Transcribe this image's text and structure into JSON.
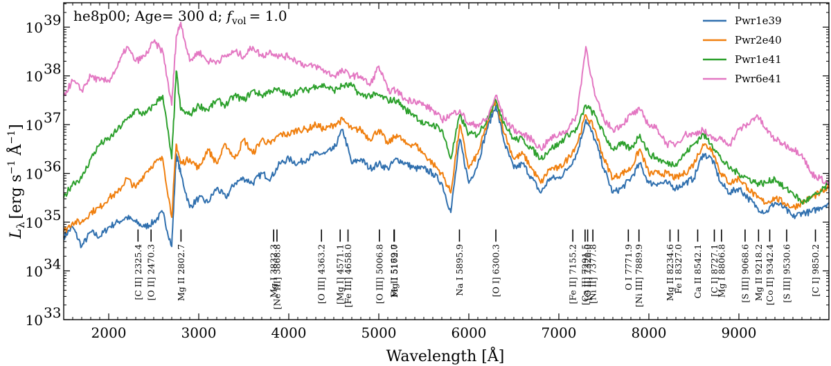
{
  "chart_data": {
    "type": "line",
    "title": "he8p00; Age= 300 d; f_vol = 1.0",
    "title_parts": {
      "model": "he8p00; Age",
      "age": "= 300 d;",
      "fvol_sym": "f",
      "fvol_sub": "vol",
      "fvol_val": "= 1.0"
    },
    "xlabel": "Wavelength [Å]",
    "ylabel": "L_λ [erg s^-1 Å^-1]",
    "ylabel_parts": {
      "sym": "L",
      "sub": "λ",
      "unit_a": "[erg s",
      "exp_a": "−1",
      "unit_b": " Å",
      "exp_b": "−1",
      "close": "]"
    },
    "xlim": [
      1500,
      10000
    ],
    "ylim_log10": [
      33,
      39.5
    ],
    "y_scale": "log",
    "x_ticks": [
      2000,
      3000,
      4000,
      5000,
      6000,
      7000,
      8000,
      9000
    ],
    "y_ticks": [
      {
        "exp": 33,
        "base": "10",
        "sup": "33"
      },
      {
        "exp": 34,
        "base": "10",
        "sup": "34"
      },
      {
        "exp": 35,
        "base": "10",
        "sup": "35"
      },
      {
        "exp": 36,
        "base": "10",
        "sup": "36"
      },
      {
        "exp": 37,
        "base": "10",
        "sup": "37"
      },
      {
        "exp": 38,
        "base": "10",
        "sup": "38"
      },
      {
        "exp": 39,
        "base": "10",
        "sup": "39"
      }
    ],
    "legend_position": "top-right",
    "series": [
      {
        "name": "Pwr1e39",
        "color": "#2f6fae",
        "x": [
          1500,
          1600,
          1700,
          1800,
          1900,
          2000,
          2100,
          2200,
          2300,
          2400,
          2500,
          2600,
          2700,
          2750,
          2800,
          2900,
          3000,
          3100,
          3200,
          3300,
          3400,
          3500,
          3600,
          3700,
          3800,
          3900,
          4000,
          4100,
          4200,
          4300,
          4400,
          4500,
          4600,
          4700,
          4800,
          4900,
          5000,
          5100,
          5200,
          5300,
          5400,
          5500,
          5600,
          5700,
          5800,
          5900,
          6000,
          6100,
          6200,
          6300,
          6400,
          6500,
          6600,
          6700,
          6800,
          6900,
          7000,
          7100,
          7200,
          7300,
          7400,
          7500,
          7600,
          7700,
          7800,
          7900,
          8000,
          8100,
          8200,
          8300,
          8400,
          8500,
          8600,
          8700,
          8800,
          8900,
          9000,
          9100,
          9200,
          9300,
          9400,
          9500,
          9600,
          9700,
          9800,
          9900,
          10000
        ],
        "log_y": [
          34.7,
          34.9,
          34.5,
          34.8,
          34.7,
          34.9,
          35.0,
          35.1,
          35.0,
          34.9,
          35.0,
          35.2,
          34.5,
          36.4,
          36.0,
          35.3,
          35.5,
          35.4,
          35.7,
          35.5,
          35.8,
          35.9,
          35.8,
          36.0,
          35.9,
          36.2,
          36.3,
          36.2,
          36.3,
          36.4,
          36.4,
          36.5,
          36.9,
          36.2,
          36.3,
          36.1,
          36.2,
          36.1,
          36.3,
          36.2,
          36.1,
          36.1,
          36.0,
          35.8,
          35.2,
          36.7,
          35.8,
          36.2,
          36.9,
          37.4,
          36.6,
          36.1,
          36.2,
          35.9,
          35.6,
          35.9,
          35.9,
          36.1,
          36.4,
          37.1,
          36.7,
          36.1,
          35.6,
          35.7,
          35.9,
          36.2,
          35.8,
          35.8,
          35.8,
          35.7,
          35.8,
          35.9,
          36.4,
          36.3,
          35.8,
          35.6,
          35.7,
          35.5,
          35.3,
          35.2,
          35.4,
          35.3,
          35.1,
          35.2,
          35.2,
          35.3,
          35.4
        ]
      },
      {
        "name": "Pwr2e40",
        "color": "#f07f0e",
        "x": [
          1500,
          1600,
          1700,
          1800,
          1900,
          2000,
          2100,
          2200,
          2300,
          2400,
          2500,
          2600,
          2700,
          2750,
          2800,
          2900,
          3000,
          3100,
          3200,
          3300,
          3400,
          3500,
          3600,
          3700,
          3800,
          3900,
          4000,
          4100,
          4200,
          4300,
          4400,
          4500,
          4600,
          4700,
          4800,
          4900,
          5000,
          5100,
          5200,
          5300,
          5400,
          5500,
          5600,
          5700,
          5800,
          5900,
          6000,
          6100,
          6200,
          6300,
          6400,
          6500,
          6600,
          6700,
          6800,
          6900,
          7000,
          7100,
          7200,
          7300,
          7400,
          7500,
          7600,
          7700,
          7800,
          7900,
          8000,
          8100,
          8200,
          8300,
          8400,
          8500,
          8600,
          8700,
          8800,
          8900,
          9000,
          9100,
          9200,
          9300,
          9400,
          9500,
          9600,
          9700,
          9800,
          9900,
          10000
        ],
        "log_y": [
          34.8,
          35.0,
          35.0,
          35.2,
          35.3,
          35.5,
          35.6,
          35.9,
          35.7,
          36.0,
          36.2,
          36.3,
          35.1,
          36.6,
          36.2,
          36.3,
          36.1,
          36.5,
          36.2,
          36.6,
          36.3,
          36.7,
          36.4,
          36.7,
          36.6,
          36.8,
          36.8,
          36.9,
          36.9,
          37.0,
          36.9,
          37.0,
          37.1,
          36.9,
          36.9,
          36.7,
          36.9,
          36.6,
          36.8,
          36.6,
          36.6,
          36.4,
          36.2,
          36.0,
          35.6,
          37.0,
          36.1,
          36.4,
          37.0,
          37.5,
          36.8,
          36.3,
          36.4,
          36.1,
          35.8,
          36.1,
          36.1,
          36.3,
          36.6,
          37.2,
          36.9,
          36.3,
          35.9,
          36.0,
          36.1,
          36.5,
          36.0,
          36.0,
          36.0,
          35.9,
          36.0,
          36.2,
          36.6,
          36.5,
          36.0,
          35.8,
          35.9,
          35.7,
          35.5,
          35.4,
          35.5,
          35.4,
          35.3,
          35.4,
          35.5,
          35.6,
          35.7
        ]
      },
      {
        "name": "Pwr1e41",
        "color": "#2ca02c",
        "x": [
          1500,
          1600,
          1700,
          1800,
          1900,
          2000,
          2100,
          2200,
          2300,
          2400,
          2500,
          2600,
          2700,
          2750,
          2800,
          2900,
          3000,
          3100,
          3200,
          3300,
          3400,
          3500,
          3600,
          3700,
          3800,
          3900,
          4000,
          4100,
          4200,
          4300,
          4400,
          4500,
          4600,
          4700,
          4800,
          4900,
          5000,
          5100,
          5200,
          5300,
          5400,
          5500,
          5600,
          5700,
          5800,
          5900,
          6000,
          6100,
          6200,
          6300,
          6400,
          6500,
          6600,
          6700,
          6800,
          6900,
          7000,
          7100,
          7200,
          7300,
          7400,
          7500,
          7600,
          7700,
          7800,
          7900,
          8000,
          8100,
          8200,
          8300,
          8400,
          8500,
          8600,
          8700,
          8800,
          8900,
          9000,
          9100,
          9200,
          9300,
          9400,
          9500,
          9600,
          9700,
          9800,
          9900,
          10000
        ],
        "log_y": [
          35.5,
          35.8,
          35.9,
          36.3,
          36.6,
          36.7,
          36.9,
          37.1,
          37.3,
          37.2,
          37.4,
          37.6,
          36.3,
          38.1,
          37.3,
          37.2,
          37.4,
          37.3,
          37.5,
          37.4,
          37.6,
          37.5,
          37.7,
          37.6,
          37.7,
          37.7,
          37.6,
          37.7,
          37.7,
          37.8,
          37.8,
          37.7,
          37.8,
          37.8,
          37.6,
          37.6,
          37.6,
          37.5,
          37.5,
          37.3,
          37.2,
          37.0,
          37.0,
          36.9,
          36.3,
          37.2,
          36.8,
          36.8,
          37.1,
          37.5,
          37.0,
          36.7,
          36.7,
          36.5,
          36.3,
          36.5,
          36.6,
          36.8,
          36.9,
          37.4,
          37.2,
          36.8,
          36.5,
          36.6,
          36.5,
          36.8,
          36.4,
          36.3,
          36.2,
          36.2,
          36.4,
          36.6,
          36.8,
          36.6,
          36.3,
          36.1,
          36.0,
          35.9,
          35.8,
          35.8,
          35.9,
          35.7,
          35.6,
          35.4,
          35.5,
          35.6,
          35.8
        ]
      },
      {
        "name": "Pwr6e41",
        "color": "#e377c2",
        "x": [
          1500,
          1600,
          1700,
          1800,
          1900,
          2000,
          2100,
          2200,
          2300,
          2400,
          2500,
          2600,
          2700,
          2750,
          2800,
          2900,
          3000,
          3100,
          3200,
          3300,
          3400,
          3500,
          3600,
          3700,
          3800,
          3900,
          4000,
          4100,
          4200,
          4300,
          4400,
          4500,
          4600,
          4700,
          4800,
          4900,
          5000,
          5100,
          5200,
          5300,
          5400,
          5500,
          5600,
          5700,
          5800,
          5900,
          6000,
          6100,
          6200,
          6300,
          6400,
          6500,
          6600,
          6700,
          6800,
          6900,
          7000,
          7100,
          7200,
          7300,
          7400,
          7500,
          7600,
          7700,
          7800,
          7900,
          8000,
          8100,
          8200,
          8300,
          8400,
          8500,
          8600,
          8700,
          8800,
          8900,
          9000,
          9100,
          9200,
          9300,
          9400,
          9500,
          9600,
          9700,
          9800,
          9900,
          10000
        ],
        "log_y": [
          37.6,
          37.9,
          37.7,
          38.0,
          37.9,
          37.9,
          38.2,
          38.6,
          38.3,
          38.4,
          38.7,
          38.5,
          37.4,
          38.8,
          39.1,
          38.3,
          38.5,
          38.3,
          38.3,
          38.4,
          38.5,
          38.4,
          38.6,
          38.4,
          38.5,
          38.4,
          38.4,
          38.3,
          38.2,
          38.2,
          38.1,
          38.0,
          38.1,
          38.0,
          38.0,
          37.8,
          38.2,
          37.7,
          37.7,
          37.5,
          37.5,
          37.4,
          37.3,
          37.1,
          37.2,
          37.3,
          37.0,
          37.0,
          37.1,
          37.6,
          37.1,
          36.9,
          36.8,
          36.7,
          36.5,
          36.7,
          36.8,
          36.9,
          37.2,
          38.6,
          37.6,
          37.1,
          36.9,
          37.0,
          37.2,
          37.3,
          37.0,
          36.9,
          36.6,
          36.6,
          36.8,
          36.8,
          36.9,
          36.7,
          36.7,
          36.6,
          36.9,
          37.0,
          37.2,
          36.9,
          36.7,
          36.6,
          36.5,
          36.4,
          36.0,
          35.9,
          35.8
        ]
      }
    ],
    "line_ids": [
      {
        "x": 2325.4,
        "label": "[C II] 2325.4"
      },
      {
        "x": 2470.3,
        "label": "[O II] 2470.3"
      },
      {
        "x": 2802.7,
        "label": "Mg II 2802.7"
      },
      {
        "x": 3832.3,
        "label": "Mg I 3832.3"
      },
      {
        "x": 3868.8,
        "label": "[Ne III] 3868.8"
      },
      {
        "x": 4363.2,
        "label": "[O III] 4363.2"
      },
      {
        "x": 4571.1,
        "label": "[Mg I] 4571.1"
      },
      {
        "x": 4658.0,
        "label": "[Fe III] 4658.0"
      },
      {
        "x": 5006.8,
        "label": "[O III] 5006.8"
      },
      {
        "x": 5169.0,
        "label": "Fe II 5169.0"
      },
      {
        "x": 5172.7,
        "label": "Mg I 5172.7"
      },
      {
        "x": 5895.9,
        "label": "Na I 5895.9"
      },
      {
        "x": 6300.3,
        "label": "[O I] 6300.3"
      },
      {
        "x": 7155.2,
        "label": "[Fe II] 7155.2"
      },
      {
        "x": 7291.5,
        "label": "[Ca II] 7291.5"
      },
      {
        "x": 7320.0,
        "label": "[O II] 7320.0"
      },
      {
        "x": 7377.8,
        "label": "[Ni II] 7377.8"
      },
      {
        "x": 7771.9,
        "label": "O I 7771.9"
      },
      {
        "x": 7889.9,
        "label": "[Ni III] 7889.9"
      },
      {
        "x": 8234.6,
        "label": "Mg II 8234.6"
      },
      {
        "x": 8327.0,
        "label": "Fe I 8327.0"
      },
      {
        "x": 8542.1,
        "label": "Ca II 8542.1"
      },
      {
        "x": 8727.1,
        "label": "[C I] 8727.1"
      },
      {
        "x": 8806.8,
        "label": "Mg I 8806.8"
      },
      {
        "x": 9068.6,
        "label": "[S III] 9068.6"
      },
      {
        "x": 9218.2,
        "label": "Mg II 9218.2"
      },
      {
        "x": 9342.4,
        "label": "[Co II] 9342.4"
      },
      {
        "x": 9530.6,
        "label": "[S III] 9530.6"
      },
      {
        "x": 9850.2,
        "label": "[C I] 9850.2"
      }
    ]
  }
}
